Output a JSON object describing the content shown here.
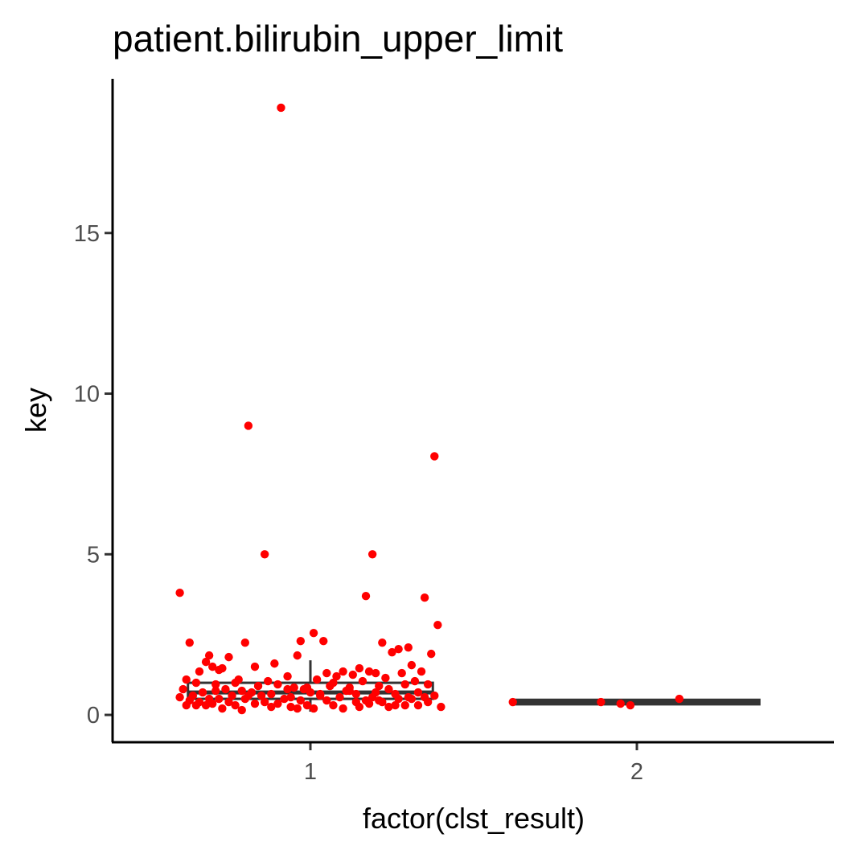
{
  "chart_data": {
    "type": "scatter",
    "title": "patient.bilirubin_upper_limit",
    "xlabel": "factor(clst_result)",
    "ylabel": "key",
    "categories": [
      "1",
      "2"
    ],
    "yticks": [
      0,
      5,
      10,
      15
    ],
    "ylim": [
      -0.85,
      19.8
    ],
    "grid": false,
    "legend": "none",
    "point_color": "#ff0000",
    "box_color": "#333333",
    "boxes": [
      {
        "category": "1",
        "q1": 0.5,
        "median": 0.7,
        "q3": 1.0,
        "whisker_low": 0.1,
        "whisker_high": 1.7
      },
      {
        "category": "2",
        "q1": 0.33,
        "median": 0.4,
        "q3": 0.47,
        "whisker_low": 0.3,
        "whisker_high": 0.5
      }
    ],
    "series": [
      {
        "category": "1",
        "x": [
          0.91,
          0.81,
          1.38,
          0.86,
          1.19,
          0.6,
          1.35,
          1.17,
          1.39,
          1.01,
          0.97,
          1.04,
          0.63,
          0.8,
          1.22,
          0.96,
          1.3,
          1.37,
          1.27,
          0.69,
          1.25,
          0.75,
          1.31,
          0.68,
          0.7,
          0.73,
          1.1,
          1.15,
          0.83,
          0.62,
          1.08,
          1.2,
          0.66,
          0.72,
          0.89,
          1.05,
          1.18,
          0.78,
          0.93,
          1.28,
          0.65,
          0.87,
          1.13,
          1.34,
          0.77,
          0.99,
          1.23,
          0.71,
          1.02,
          1.32,
          0.61,
          0.84,
          1.07,
          1.16,
          0.95,
          1.29,
          0.67,
          0.74,
          0.9,
          1.12,
          1.21,
          1.36,
          0.79,
          0.98,
          1.06,
          0.64,
          0.82,
          1.24,
          1.33,
          0.88,
          1.11,
          0.76,
          1.0,
          1.26,
          0.94,
          1.14,
          0.85,
          1.19,
          0.69,
          1.03,
          1.35,
          0.72,
          0.92,
          1.09,
          1.27,
          0.63,
          0.8,
          1.17,
          0.97,
          1.38,
          0.66,
          1.21,
          0.75,
          1.05,
          0.86,
          1.31,
          0.7,
          1.14,
          1.22,
          1.4,
          0.9,
          0.62,
          1.18,
          0.83,
          0.99,
          1.26,
          0.68,
          1.07,
          0.94,
          1.33,
          0.6,
          0.77,
          1.15,
          1.01,
          0.88,
          1.29,
          0.73,
          1.1,
          0.96,
          1.24,
          0.65,
          1.36,
          0.81,
          1.03,
          1.2,
          0.71,
          0.93,
          1.12,
          0.79,
          1.3
        ],
        "y": [
          18.9,
          9.0,
          8.05,
          5.0,
          5.0,
          3.8,
          3.65,
          3.7,
          2.8,
          2.55,
          2.3,
          2.3,
          2.25,
          2.25,
          2.25,
          1.85,
          2.1,
          1.9,
          2.05,
          1.85,
          1.95,
          1.8,
          1.55,
          1.65,
          1.5,
          1.45,
          1.35,
          1.45,
          1.5,
          1.1,
          1.2,
          1.3,
          1.35,
          1.4,
          1.6,
          1.3,
          1.35,
          1.1,
          1.2,
          1.3,
          1.0,
          1.05,
          1.25,
          1.35,
          1.0,
          0.85,
          1.15,
          0.95,
          1.1,
          1.05,
          0.8,
          0.9,
          1.0,
          1.05,
          0.85,
          0.95,
          0.7,
          0.8,
          0.95,
          0.85,
          0.9,
          0.95,
          0.75,
          0.8,
          0.9,
          0.6,
          0.7,
          0.8,
          0.7,
          0.65,
          0.75,
          0.6,
          0.7,
          0.65,
          0.55,
          0.65,
          0.6,
          0.55,
          0.5,
          0.6,
          0.55,
          0.5,
          0.5,
          0.55,
          0.5,
          0.45,
          0.5,
          0.45,
          0.45,
          0.6,
          0.4,
          0.45,
          0.4,
          0.45,
          0.4,
          0.5,
          0.35,
          0.4,
          0.4,
          0.25,
          0.35,
          0.3,
          0.35,
          0.35,
          0.3,
          0.3,
          0.3,
          0.3,
          0.25,
          0.3,
          0.55,
          0.3,
          0.25,
          0.2,
          0.25,
          0.3,
          0.2,
          0.2,
          0.2,
          0.25,
          0.3,
          0.4,
          0.6,
          0.65,
          0.7,
          0.75,
          0.8,
          0.75,
          0.15,
          0.55
        ]
      },
      {
        "category": "2",
        "x": [
          1.62,
          1.89,
          1.95,
          1.98,
          2.13
        ],
        "y": [
          0.4,
          0.4,
          0.35,
          0.3,
          0.5
        ]
      }
    ]
  }
}
